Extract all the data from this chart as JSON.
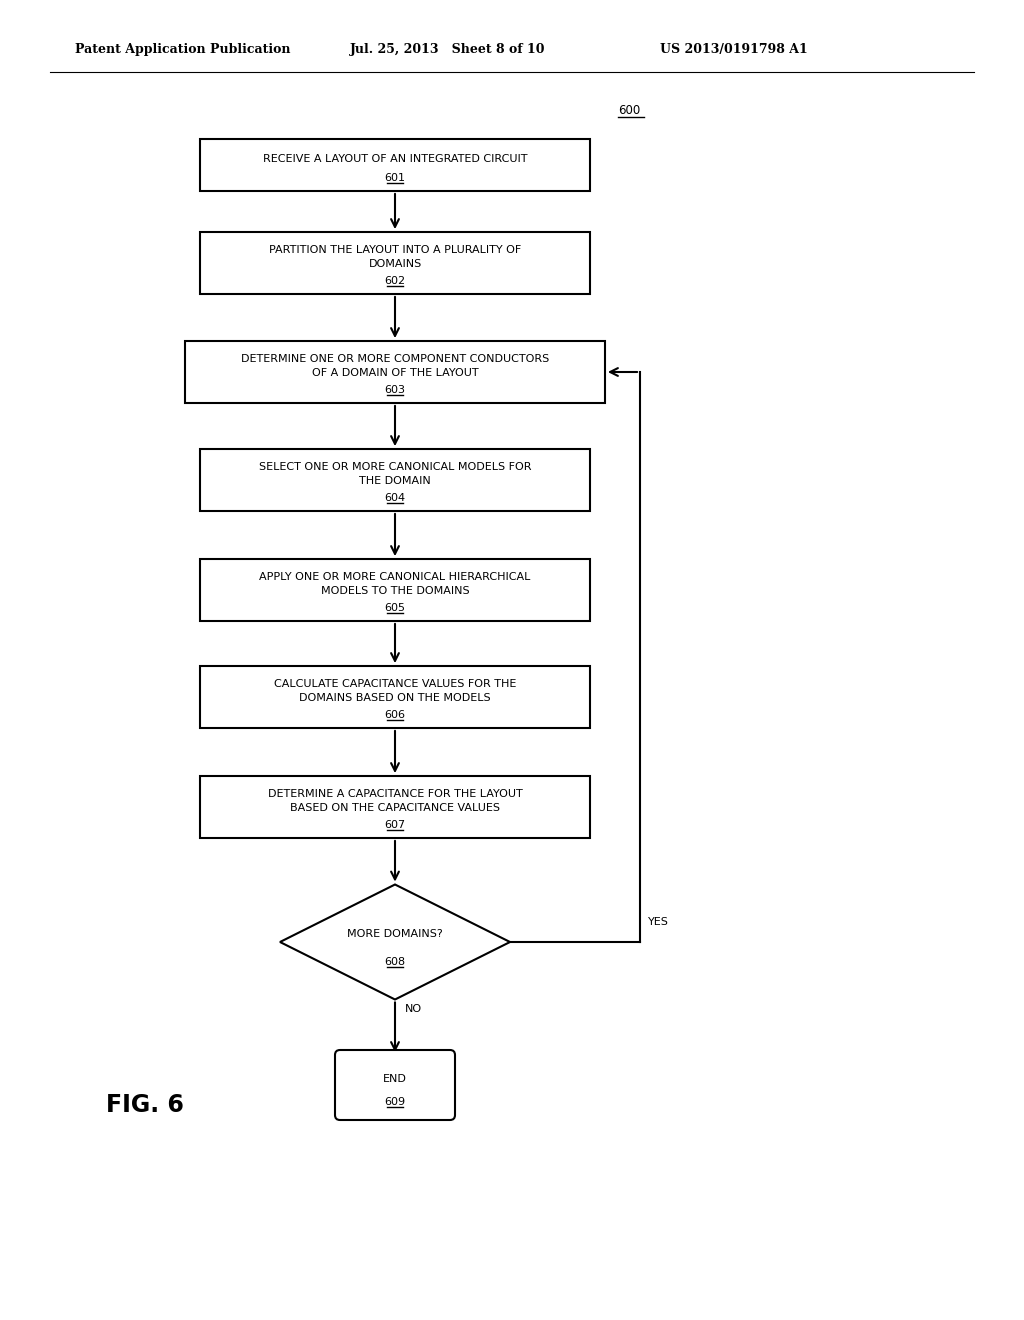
{
  "header_left": "Patent Application Publication",
  "header_mid": "Jul. 25, 2013   Sheet 8 of 10",
  "header_right": "US 2013/0191798 A1",
  "fig_label": "FIG. 6",
  "bg_color": "#ffffff",
  "font_size": 8.0,
  "header_font_size": 9.0,
  "fig_font_size": 17,
  "boxes": {
    "601": {
      "lines": [
        "RECEIVE A LAYOUT OF AN INTEGRATED CIRCUIT"
      ],
      "num": "601"
    },
    "602": {
      "lines": [
        "PARTITION THE LAYOUT INTO A PLURALITY OF",
        "DOMAINS"
      ],
      "num": "602"
    },
    "603": {
      "lines": [
        "DETERMINE ONE OR MORE COMPONENT CONDUCTORS",
        "OF A DOMAIN OF THE LAYOUT"
      ],
      "num": "603"
    },
    "604": {
      "lines": [
        "SELECT ONE OR MORE CANONICAL MODELS FOR",
        "THE DOMAIN"
      ],
      "num": "604"
    },
    "605": {
      "lines": [
        "APPLY ONE OR MORE CANONICAL HIERARCHICAL",
        "MODELS TO THE DOMAINS"
      ],
      "num": "605"
    },
    "606": {
      "lines": [
        "CALCULATE CAPACITANCE VALUES FOR THE",
        "DOMAINS BASED ON THE MODELS"
      ],
      "num": "606"
    },
    "607": {
      "lines": [
        "DETERMINE A CAPACITANCE FOR THE LAYOUT",
        "BASED ON THE CAPACITANCE VALUES"
      ],
      "num": "607"
    },
    "608": {
      "lines": [
        "MORE DOMAINS?"
      ],
      "num": "608"
    },
    "609": {
      "lines": [
        "END"
      ],
      "num": "609"
    }
  }
}
